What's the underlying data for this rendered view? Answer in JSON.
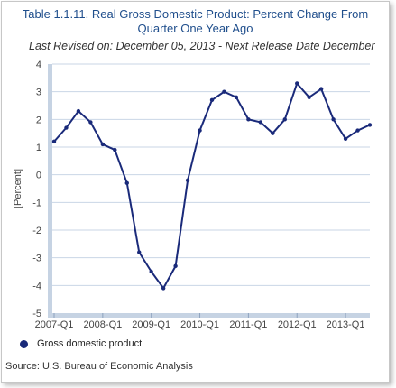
{
  "chart_data": {
    "type": "line",
    "title": "Table 1.1.11. Real Gross Domestic Product: Percent Change From Quarter One Year Ago",
    "title_lines": [
      "Table 1.1.11. Real Gross Domestic Product: Percent Change From",
      "Quarter One Year Ago"
    ],
    "subtitle": "Last Revised on: December 05, 2013 - Next Release Date December",
    "ylabel": "[Percent]",
    "xlabel": "",
    "ylim": [
      -5,
      4
    ],
    "y_ticks": [
      "4",
      "3",
      "2",
      "1",
      "0",
      "-1",
      "-2",
      "-3",
      "-4",
      "-5"
    ],
    "x_tick_labels": [
      "2007-Q1",
      "2008-Q1",
      "2009-Q1",
      "2010-Q1",
      "2011-Q1",
      "2012-Q1",
      "2013-Q1"
    ],
    "categories": [
      "2007-Q1",
      "2007-Q2",
      "2007-Q3",
      "2007-Q4",
      "2008-Q1",
      "2008-Q2",
      "2008-Q3",
      "2008-Q4",
      "2009-Q1",
      "2009-Q2",
      "2009-Q3",
      "2009-Q4",
      "2010-Q1",
      "2010-Q2",
      "2010-Q3",
      "2010-Q4",
      "2011-Q1",
      "2011-Q2",
      "2011-Q3",
      "2011-Q4",
      "2012-Q1",
      "2012-Q2",
      "2012-Q3",
      "2012-Q4",
      "2013-Q1",
      "2013-Q2",
      "2013-Q3"
    ],
    "series": [
      {
        "name": "Gross domestic product",
        "color": "#1a2a7a",
        "values": [
          1.2,
          1.7,
          2.3,
          1.9,
          1.1,
          0.9,
          -0.3,
          -2.8,
          -3.5,
          -4.1,
          -3.3,
          -0.2,
          1.6,
          2.7,
          3.0,
          2.8,
          2.0,
          1.9,
          1.5,
          2.0,
          3.3,
          2.8,
          3.1,
          2.0,
          1.3,
          1.6,
          1.8
        ]
      }
    ],
    "grid": "horizontal",
    "legend": "bottom-left"
  },
  "source": "Source: U.S. Bureau of Economic Analysis",
  "colors": {
    "title": "#1f4e8c",
    "line": "#1a2a7a",
    "grid": "#c9d6e6",
    "axis_bar": "#c6d3e3"
  }
}
